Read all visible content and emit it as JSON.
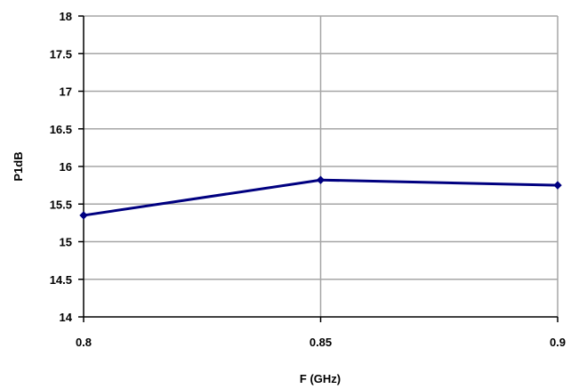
{
  "chart_data": {
    "type": "line",
    "title": "",
    "xlabel": "F (GHz)",
    "ylabel": "P1dB",
    "x": [
      0.8,
      0.85,
      0.9
    ],
    "x_tick_labels": [
      "0.8",
      "0.85",
      "0.9"
    ],
    "xlim": [
      0.8,
      0.9
    ],
    "ylim": [
      14,
      18
    ],
    "y_ticks": [
      14,
      14.5,
      15,
      15.5,
      16,
      16.5,
      17,
      17.5,
      18
    ],
    "y_tick_labels": [
      "14",
      "14.5",
      "15",
      "15.5",
      "16",
      "16.5",
      "17",
      "17.5",
      "18"
    ],
    "grid": true,
    "legend": "none",
    "series": [
      {
        "values": [
          15.35,
          15.82,
          15.75
        ],
        "color": "#000080",
        "marker": "diamond"
      }
    ],
    "colors": {
      "grid": "#a6a6a6",
      "axis": "#000000",
      "line": "#000080"
    }
  }
}
